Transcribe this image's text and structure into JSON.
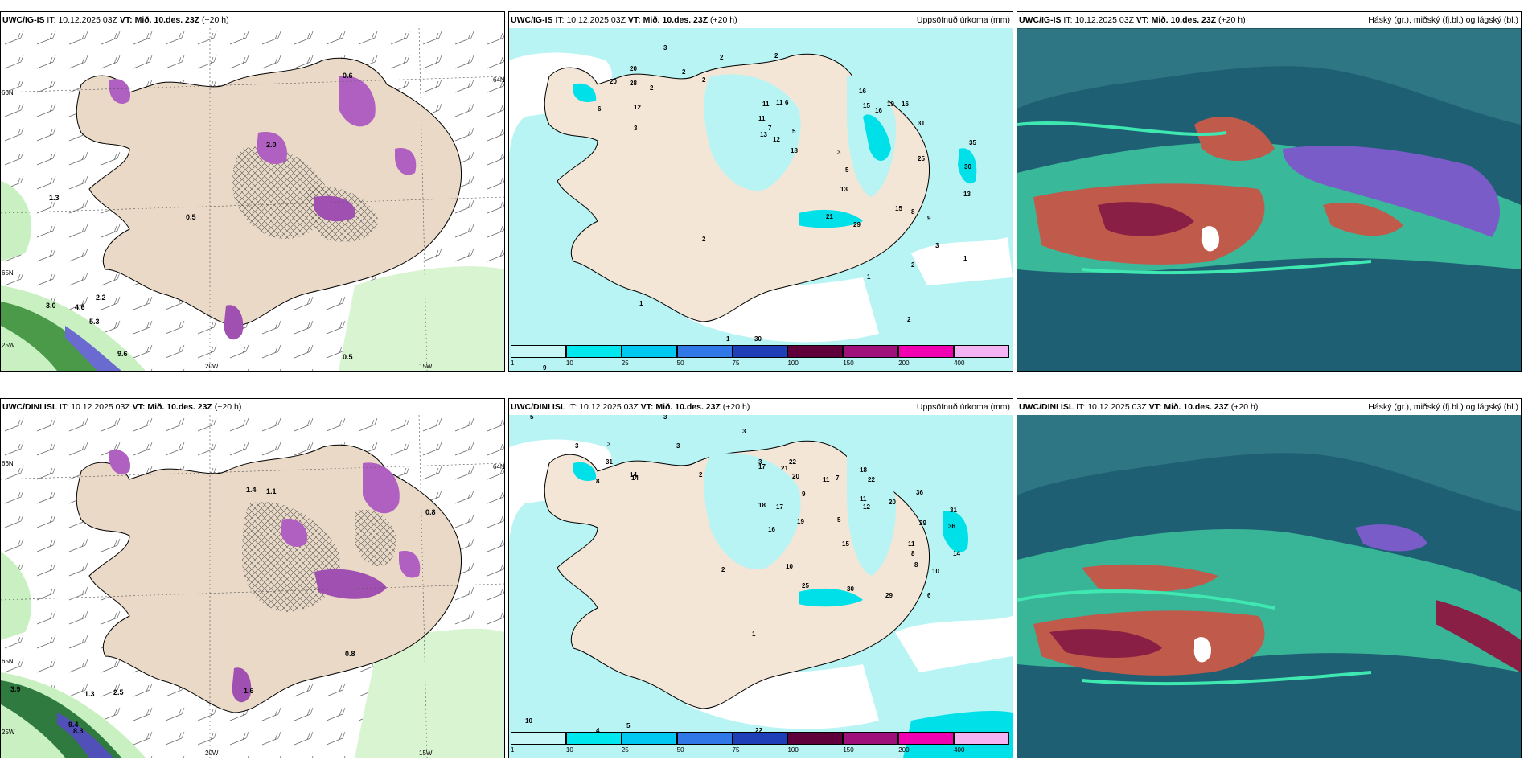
{
  "rows": [
    {
      "model": "UWC/IG-IS",
      "init_label": "IT:",
      "init_time": "10.12.2025 03Z",
      "valid_label": "VT:",
      "valid_time": "Mið. 10.des. 23Z",
      "lead": "(+20 h)",
      "wind_values": [
        "0.6",
        "1.3",
        "3.0",
        "4.6",
        "5.3",
        "2.2",
        "9.6",
        "0.5",
        "0.5",
        "2.0"
      ],
      "precip_values": [
        "3",
        "2",
        "2",
        "2",
        "2",
        "20",
        "28",
        "6",
        "12",
        "2",
        "3",
        "16",
        "15",
        "16",
        "19",
        "16",
        "11",
        "7",
        "12",
        "13",
        "18",
        "5",
        "11",
        "31",
        "35",
        "3",
        "5",
        "13",
        "25",
        "30",
        "13",
        "21",
        "29",
        "15",
        "8",
        "9",
        "1",
        "2",
        "3",
        "1",
        "2",
        "2",
        "1",
        "1",
        "30",
        "8",
        "9",
        "20",
        "11",
        "6"
      ],
      "axis_labels": [
        "66N",
        "65N",
        "64N",
        "20W",
        "15W",
        "25W"
      ]
    },
    {
      "model": "UWC/DINI ISL",
      "init_label": "IT:",
      "init_time": "10.12.2025 03Z",
      "valid_label": "VT:",
      "valid_time": "Mið. 10.des. 23Z",
      "lead": "(+20 h)",
      "wind_values": [
        "0.8",
        "1.4",
        "3.9",
        "1.3",
        "2.5",
        "9.4",
        "8.3",
        "0.8",
        "1.6",
        "1.1"
      ],
      "precip_values": [
        "5",
        "3",
        "3",
        "3",
        "3",
        "3",
        "31",
        "14",
        "8",
        "2",
        "3",
        "17",
        "21",
        "20",
        "22",
        "11",
        "7",
        "18",
        "17",
        "9",
        "19",
        "16",
        "14",
        "5",
        "18",
        "22",
        "11",
        "20",
        "12",
        "31",
        "36",
        "29",
        "36",
        "25",
        "30",
        "29",
        "10",
        "15",
        "8",
        "14",
        "11",
        "8",
        "10",
        "6",
        "2",
        "1",
        "4",
        "5",
        "10",
        "22"
      ],
      "axis_labels": [
        "66N",
        "65N",
        "64N",
        "20W",
        "15W",
        "25W"
      ]
    }
  ],
  "titles": {
    "precip": "Uppsöfnuð úrkoma (mm)",
    "clouds": "Háský (gr.), miðský (fj.bl.) og lágský (bl.)"
  },
  "colorbar": {
    "ticks": [
      "1",
      "10",
      "25",
      "50",
      "75",
      "100",
      "150",
      "200",
      "400"
    ],
    "colors": [
      "#c8f7f7",
      "#00e8ee",
      "#00c8f0",
      "#3078e8",
      "#1f3fb8",
      "#60003a",
      "#a0107a",
      "#f000b0",
      "#f4b4f4"
    ]
  }
}
